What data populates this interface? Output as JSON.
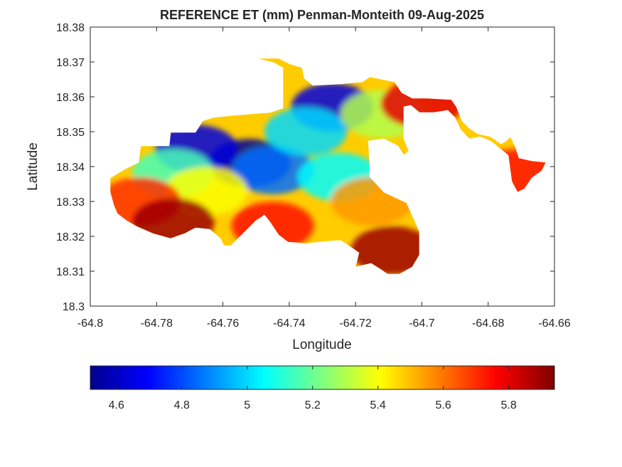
{
  "chart_data": {
    "type": "heatmap",
    "title": "REFERENCE ET (mm) Penman-Monteith 09-Aug-2025",
    "xlabel": "Longitude",
    "ylabel": "Latitude",
    "xlim": [
      -64.8,
      -64.66
    ],
    "ylim": [
      18.3,
      18.38
    ],
    "x_ticks": [
      -64.8,
      -64.78,
      -64.76,
      -64.74,
      -64.72,
      -64.7,
      -64.68,
      -64.66
    ],
    "x_tick_labels": [
      "-64.8",
      "-64.78",
      "-64.76",
      "-64.74",
      "-64.72",
      "-64.7",
      "-64.68",
      "-64.66"
    ],
    "y_ticks": [
      18.3,
      18.31,
      18.32,
      18.33,
      18.34,
      18.35,
      18.36,
      18.37,
      18.38
    ],
    "y_tick_labels": [
      "18.3",
      "18.31",
      "18.32",
      "18.33",
      "18.34",
      "18.35",
      "18.36",
      "18.37",
      "18.38"
    ],
    "colormap": "jet",
    "colorbar": {
      "placement": "bottom",
      "range": [
        4.52,
        5.94
      ],
      "ticks": [
        4.6,
        4.8,
        5.0,
        5.2,
        5.4,
        5.6,
        5.8
      ],
      "tick_labels": [
        "4.6",
        "4.8",
        "5",
        "5.2",
        "5.4",
        "5.6",
        "5.8"
      ]
    },
    "grid": false,
    "regions": [
      {
        "lon": -64.752,
        "lat": 18.341,
        "value": 4.55
      },
      {
        "lon": -64.768,
        "lat": 18.345,
        "value": 4.65
      },
      {
        "lon": -64.727,
        "lat": 18.357,
        "value": 4.65
      },
      {
        "lon": -64.745,
        "lat": 18.339,
        "value": 4.85
      },
      {
        "lon": -64.735,
        "lat": 18.35,
        "value": 5.0
      },
      {
        "lon": -64.725,
        "lat": 18.337,
        "value": 5.05
      },
      {
        "lon": -64.775,
        "lat": 18.338,
        "value": 5.15
      },
      {
        "lon": -64.712,
        "lat": 18.355,
        "value": 5.3
      },
      {
        "lon": -64.765,
        "lat": 18.333,
        "value": 5.4
      },
      {
        "lon": -64.715,
        "lat": 18.33,
        "value": 5.55
      },
      {
        "lon": -64.785,
        "lat": 18.33,
        "value": 5.7
      },
      {
        "lon": -64.745,
        "lat": 18.323,
        "value": 5.75
      },
      {
        "lon": -64.7,
        "lat": 18.358,
        "value": 5.8
      },
      {
        "lon": -64.672,
        "lat": 18.338,
        "value": 5.75
      },
      {
        "lon": -64.775,
        "lat": 18.324,
        "value": 5.9
      },
      {
        "lon": -64.709,
        "lat": 18.316,
        "value": 5.9
      }
    ]
  }
}
